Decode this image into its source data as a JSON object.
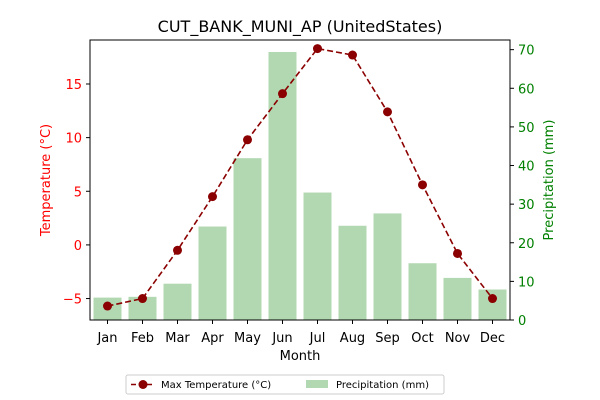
{
  "chart_data": {
    "type": "bar+line",
    "title": "CUT_BANK_MUNI_AP (UnitedStates)",
    "xlabel": "Month",
    "ylabel_left": "Temperature (°C)",
    "ylabel_right": "Precipitation (mm)",
    "categories": [
      "Jan",
      "Feb",
      "Mar",
      "Apr",
      "May",
      "Jun",
      "Jul",
      "Aug",
      "Sep",
      "Oct",
      "Nov",
      "Dec"
    ],
    "series": [
      {
        "name": "Max Temperature (°C)",
        "type": "line",
        "axis": "left",
        "values": [
          -5.7,
          -5.0,
          -0.5,
          4.5,
          9.8,
          14.1,
          18.3,
          17.7,
          12.4,
          5.6,
          -0.8,
          -5.0
        ]
      },
      {
        "name": "Precipitation (mm)",
        "type": "bar",
        "axis": "right",
        "values": [
          5.8,
          6.0,
          9.4,
          24.2,
          41.9,
          69.4,
          33.0,
          24.4,
          27.6,
          14.7,
          10.9,
          7.9
        ]
      }
    ],
    "ylim_left": [
      -7,
      19.1
    ],
    "ylim_right": [
      0,
      72.5
    ],
    "yticks_left": [
      -5,
      0,
      5,
      10,
      15
    ],
    "yticks_right": [
      0,
      10,
      20,
      30,
      40,
      50,
      60,
      70
    ],
    "legend_position": "bottom-center",
    "grid": false,
    "colors": {
      "line": "#8b0000",
      "bar": "#b2d8b2",
      "left_axis": "#ff0000",
      "right_axis": "#008000",
      "text": "#000000"
    }
  }
}
